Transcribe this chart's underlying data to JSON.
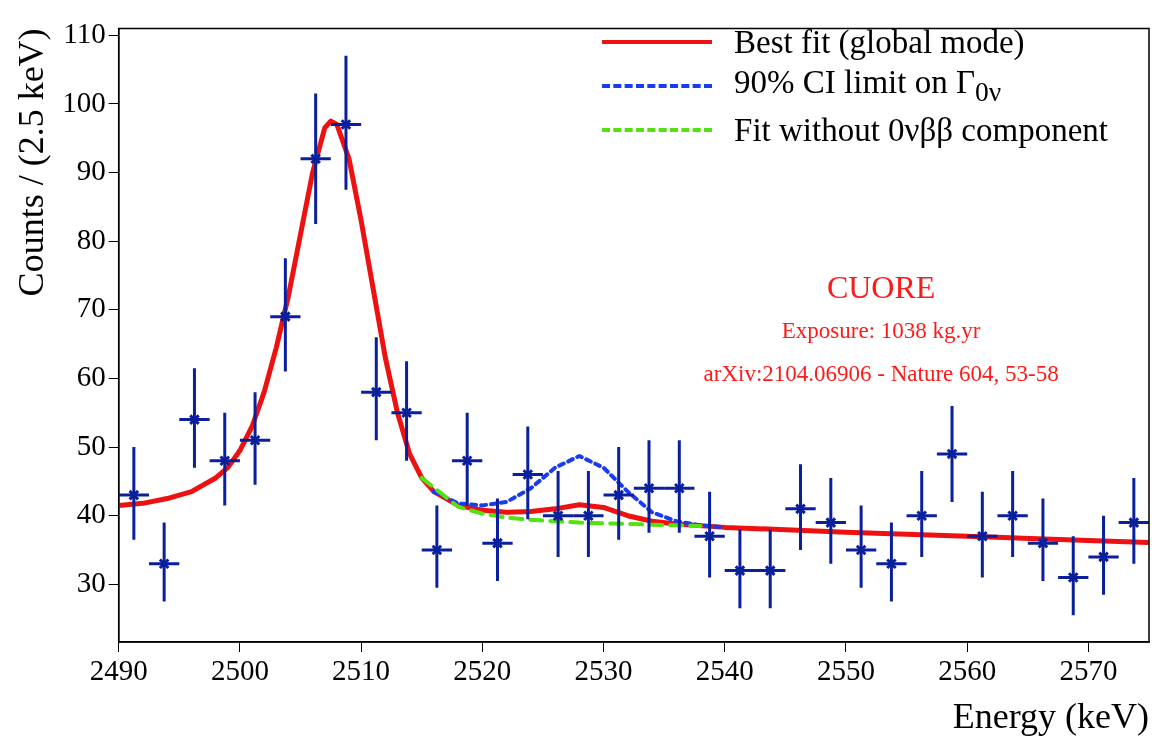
{
  "chart_data": {
    "type": "scatter",
    "xlabel": "Energy (keV)",
    "ylabel": "Counts / (2.5 keV)",
    "xlim": [
      2490,
      2575
    ],
    "xticks": [
      2490,
      2500,
      2510,
      2520,
      2530,
      2540,
      2550,
      2560,
      2570
    ],
    "ylim": [
      21.6,
      111
    ],
    "yticks": [
      30,
      40,
      50,
      60,
      70,
      80,
      90,
      100,
      110
    ],
    "grid": false,
    "legend": "top right",
    "annotations": [
      "CUORE",
      "Exposure: 1038 kg.yr",
      "arXiv:2104.06906 - Nature 604, 53-58"
    ],
    "series": [
      {
        "type": "scatter",
        "color": "#0a1f9c",
        "x": [
          2491.25,
          2493.75,
          2496.25,
          2498.75,
          2501.25,
          2503.75,
          2506.25,
          2508.75,
          2511.25,
          2513.75,
          2516.25,
          2518.75,
          2521.25,
          2523.75,
          2526.25,
          2528.75,
          2531.25,
          2533.75,
          2536.25,
          2538.75,
          2541.25,
          2543.75,
          2546.25,
          2548.75,
          2551.25,
          2553.75,
          2556.25,
          2558.75,
          2561.25,
          2563.75,
          2566.25,
          2568.75,
          2571.25,
          2573.75
        ],
        "values": [
          43,
          33,
          54,
          48,
          51,
          69,
          92,
          97,
          58,
          55,
          35,
          48,
          36,
          46,
          40,
          40,
          43,
          44,
          44,
          37,
          32,
          32,
          41,
          39,
          35,
          33,
          40,
          49,
          37,
          40,
          36,
          31,
          34,
          39
        ],
        "errors": [
          [
            36.5,
            50
          ],
          [
            27.5,
            39
          ],
          [
            47,
            61.5
          ],
          [
            41.5,
            55
          ],
          [
            44.5,
            58
          ],
          [
            61,
            77.5
          ],
          [
            82.5,
            101.5
          ],
          [
            87.5,
            107
          ],
          [
            51,
            66
          ],
          [
            48,
            62.5
          ],
          [
            29.5,
            41.5
          ],
          [
            41.5,
            55
          ],
          [
            30.5,
            42.5
          ],
          [
            39.5,
            53
          ],
          [
            34,
            46.5
          ],
          [
            34,
            46.5
          ],
          [
            36.5,
            50
          ],
          [
            37.5,
            51
          ],
          [
            37.5,
            51
          ],
          [
            31,
            43.5
          ],
          [
            26.5,
            38
          ],
          [
            26.5,
            38
          ],
          [
            35,
            47.5
          ],
          [
            33,
            45.5
          ],
          [
            29.5,
            41.5
          ],
          [
            27.5,
            39
          ],
          [
            34,
            46.5
          ],
          [
            42,
            56
          ],
          [
            31,
            43.5
          ],
          [
            34,
            46.5
          ],
          [
            30.5,
            42.5
          ],
          [
            25.5,
            37
          ],
          [
            28.5,
            40
          ],
          [
            33,
            45.5
          ]
        ],
        "xerrors": [
          1.25,
          1.25,
          1.25,
          1.25,
          1.25,
          1.25,
          1.25,
          1.25,
          1.25,
          1.25,
          1.25,
          1.25,
          1.25,
          1.25,
          1.25,
          1.25,
          1.25,
          1.25,
          1.25,
          1.25,
          1.25,
          1.25,
          1.25,
          1.25,
          1.25,
          1.25,
          1.25,
          1.25,
          1.25,
          1.25,
          1.25,
          1.25,
          1.25,
          1.25
        ]
      },
      {
        "type": "line",
        "name": "Fit without 0νββ component",
        "color": "#55e011",
        "line_style": "dashed",
        "x": [
          2515,
          2518,
          2520,
          2522,
          2524,
          2526,
          2528,
          2530,
          2532,
          2534,
          2536,
          2538
        ],
        "values": [
          45.5,
          41.3,
          40.3,
          39.7,
          39.4,
          39.2,
          39,
          38.9,
          38.8,
          38.7,
          38.6,
          38.5
        ]
      },
      {
        "type": "line",
        "name": "90% CI limit on Γ$_{0ν}$",
        "color": "#1a3cf0",
        "line_style": "dotted",
        "x": [
          2516,
          2518,
          2520,
          2522,
          2524,
          2526,
          2528,
          2530,
          2532,
          2534,
          2536,
          2538,
          2540
        ],
        "values": [
          43.5,
          41.8,
          41.5,
          42,
          44,
          47,
          48.7,
          47,
          43.5,
          40.5,
          39.2,
          38.6,
          38.3
        ]
      },
      {
        "type": "line",
        "name": "Best fit (global mode)",
        "color": "#ee1111",
        "line_style": "solid",
        "x": [
          2490,
          2492,
          2494,
          2496,
          2498,
          2499,
          2500,
          2501,
          2502,
          2503,
          2504,
          2505,
          2506,
          2507,
          2507.5,
          2508,
          2509,
          2510,
          2511,
          2512,
          2513,
          2514,
          2515,
          2516,
          2518,
          2520,
          2522,
          2524,
          2526,
          2528,
          2530,
          2532,
          2534,
          2536,
          2540,
          2550,
          2560,
          2570,
          2575
        ],
        "values": [
          41.5,
          41.8,
          42.5,
          43.5,
          45.5,
          47,
          49.5,
          53,
          58,
          64.5,
          72,
          81,
          90,
          96.5,
          97.5,
          97,
          92,
          83,
          73,
          63,
          55,
          49,
          45.5,
          43.5,
          41.5,
          40.8,
          40.5,
          40.6,
          41,
          41.6,
          41.2,
          40,
          39.2,
          38.8,
          38.3,
          37.6,
          37,
          36.4,
          36.1
        ]
      }
    ]
  }
}
